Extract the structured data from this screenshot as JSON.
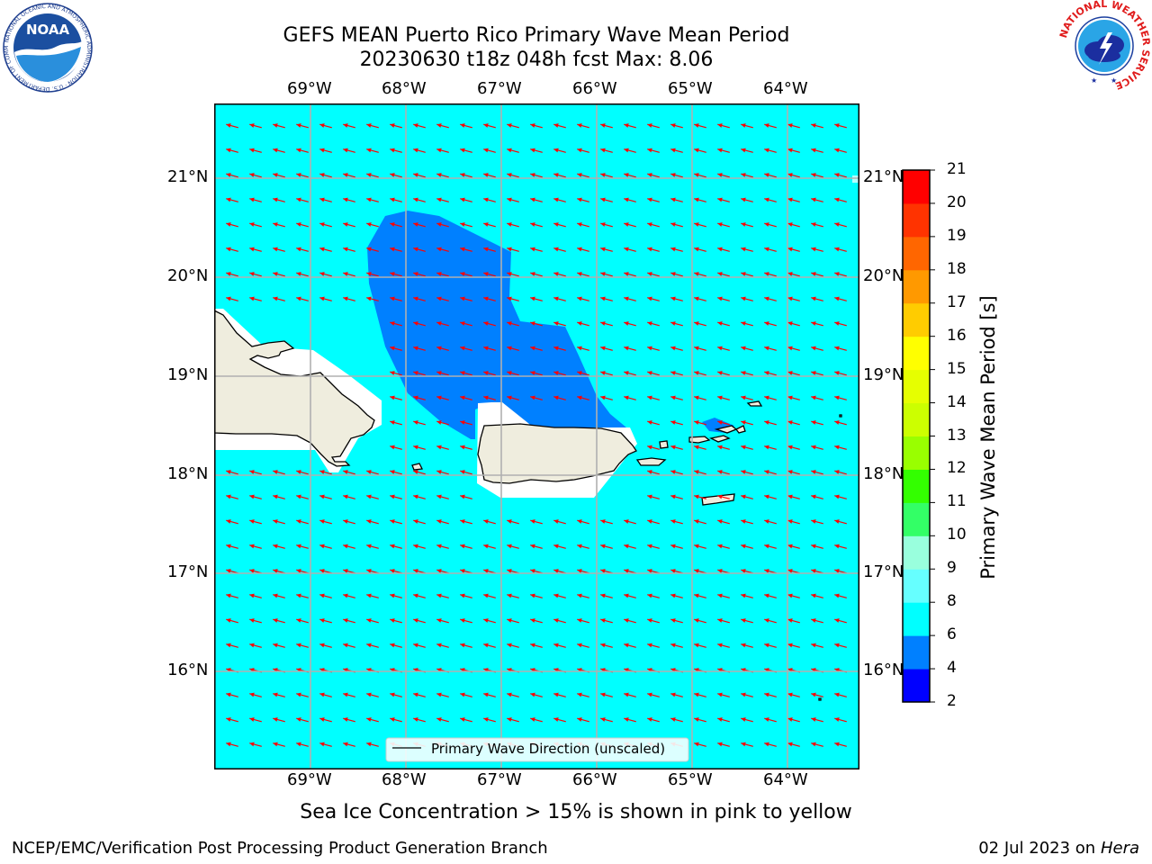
{
  "header": {
    "title_line1": "GEFS MEAN Puerto Rico Primary Wave Mean Period",
    "title_line2": "20230630 t18z 048h fcst   Max: 8.06"
  },
  "logos": {
    "noaa_text": "NOAA",
    "noaa_ring": "NATIONAL OCEANIC AND ATMOSPHERIC ADMINISTRATION · U.S. DEPARTMENT OF COMMERCE",
    "nws_ring": "NATIONAL WEATHER SERVICE"
  },
  "map": {
    "lon_labels": [
      "69°W",
      "68°W",
      "67°W",
      "66°W",
      "65°W",
      "64°W"
    ],
    "lat_labels": [
      "21°N",
      "20°N",
      "19°N",
      "18°N",
      "17°N",
      "16°N"
    ],
    "legend_label": "Primary Wave Direction (unscaled)",
    "colors": {
      "ocean": "#00ffff",
      "band_4_6": "#0080ff",
      "land": "#efedde",
      "coast": "#000000",
      "arrows": "#ff0000",
      "grid": "#b0b0b0"
    }
  },
  "colorbar": {
    "label": "Primary Wave Mean Period [s]",
    "ticks": [
      "2",
      "4",
      "6",
      "8",
      "9",
      "10",
      "11",
      "12",
      "13",
      "14",
      "15",
      "16",
      "17",
      "18",
      "19",
      "20",
      "21"
    ],
    "colors": [
      "#0000ff",
      "#0080ff",
      "#00ffff",
      "#66ffff",
      "#99ffdd",
      "#33ff66",
      "#33ff00",
      "#99ff00",
      "#ccff00",
      "#e6ff00",
      "#ffff00",
      "#ffcc00",
      "#ff9900",
      "#ff6600",
      "#ff3300",
      "#ff0000"
    ]
  },
  "notes": {
    "sea_ice": "Sea Ice Concentration > 15% is shown in pink to yellow"
  },
  "footer": {
    "left": "NCEP/EMC/Verification Post Processing Product Generation Branch",
    "date": "02 Jul 2023 on ",
    "machine": "Hera"
  }
}
